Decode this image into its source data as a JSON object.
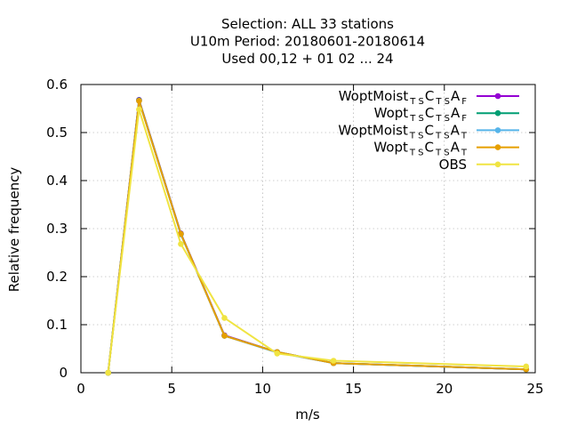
{
  "chart_data": {
    "type": "line",
    "title_lines": [
      "Selection: ALL     33 stations",
      "U10m  Period: 20180601-20180614",
      "Used  00,12  + 01 02 ... 24"
    ],
    "xlabel": "m/s",
    "ylabel": "Relative frequency",
    "xlim": [
      0,
      25
    ],
    "ylim": [
      0,
      0.6
    ],
    "xticks": [
      0,
      5,
      10,
      15,
      20,
      25
    ],
    "yticks": [
      0,
      0.1,
      0.2,
      0.3,
      0.4,
      0.5,
      0.6
    ],
    "xtick_labels": [
      "0",
      "5",
      "10",
      "15",
      "20",
      "25"
    ],
    "ytick_labels": [
      "0",
      "0.1",
      "0.2",
      "0.3",
      "0.4",
      "0.5",
      "0.6"
    ],
    "grid": true,
    "legend_position": "top-right",
    "series": [
      {
        "legend": {
          "base": "WoptMoist",
          "sub1": "T S",
          "mid": "C",
          "sub2": "T S",
          "mid2": "A",
          "sub3": "F"
        },
        "color": "#9400d3",
        "x": [
          1.5,
          3.2,
          5.5,
          7.9,
          10.8,
          13.9,
          24.5
        ],
        "y": [
          0.0,
          0.568,
          0.29,
          0.078,
          0.043,
          0.02,
          0.007
        ]
      },
      {
        "legend": {
          "base": "Wopt",
          "sub1": "T S",
          "mid": "C",
          "sub2": "T S",
          "mid2": "A",
          "sub3": "F"
        },
        "color": "#009e73",
        "x": [
          1.5,
          3.2,
          5.5,
          7.9,
          10.8,
          13.9,
          24.5
        ],
        "y": [
          0.0,
          0.567,
          0.289,
          0.077,
          0.043,
          0.02,
          0.007
        ]
      },
      {
        "legend": {
          "base": "WoptMoist",
          "sub1": "T S",
          "mid": "C",
          "sub2": "T S",
          "mid2": "A",
          "sub3": "T"
        },
        "color": "#56b4e9",
        "x": [
          1.5,
          3.2,
          5.5,
          7.9,
          10.8,
          13.9,
          24.5
        ],
        "y": [
          0.0,
          0.566,
          0.288,
          0.077,
          0.042,
          0.02,
          0.007
        ]
      },
      {
        "legend": {
          "base": "Wopt",
          "sub1": "T S",
          "mid": "C",
          "sub2": "T S",
          "mid2": "A",
          "sub3": "T"
        },
        "color": "#e69f00",
        "x": [
          1.5,
          3.2,
          5.5,
          7.9,
          10.8,
          13.9,
          24.5
        ],
        "y": [
          0.0,
          0.566,
          0.289,
          0.077,
          0.043,
          0.02,
          0.007
        ]
      },
      {
        "legend": {
          "base": "OBS"
        },
        "color": "#f0e442",
        "x": [
          1.5,
          3.2,
          5.5,
          7.9,
          10.8,
          13.9,
          24.5
        ],
        "y": [
          0.0,
          0.548,
          0.268,
          0.114,
          0.04,
          0.025,
          0.013
        ]
      }
    ]
  }
}
